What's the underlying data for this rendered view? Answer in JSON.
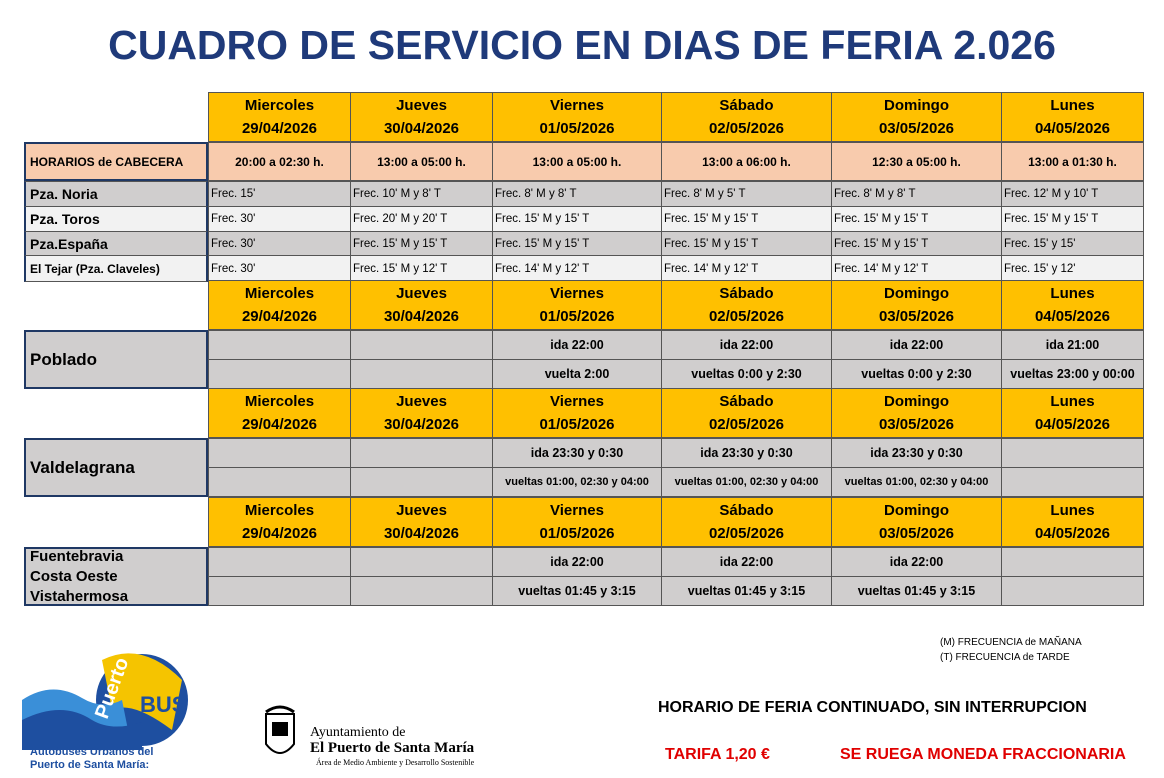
{
  "title": "CUADRO DE SERVICIO EN DIAS DE FERIA 2.026",
  "days": [
    {
      "name": "Miercoles",
      "date": "29/04/2026"
    },
    {
      "name": "Jueves",
      "date": "30/04/2026"
    },
    {
      "name": "Viernes",
      "date": "01/05/2026"
    },
    {
      "name": "Sábado",
      "date": "02/05/2026"
    },
    {
      "name": "Domingo",
      "date": "03/05/2026"
    },
    {
      "name": "Lunes",
      "date": "04/05/2026"
    }
  ],
  "main": {
    "label": "HORARIOS de CABECERA",
    "hours": [
      "20:00 a 02:30 h.",
      "13:00 a 05:00 h.",
      "13:00 a 05:00 h.",
      "13:00 a 06:00 h.",
      "12:30 a 05:00 h.",
      "13:00 a 01:30 h."
    ],
    "rows": [
      {
        "label": "Pza. Noria",
        "cells": [
          "Frec. 15'",
          "Frec. 10' M y 8' T",
          "Frec. 8' M y 8' T",
          "Frec. 8' M y 5' T",
          "Frec. 8' M y 8' T",
          "Frec. 12' M y 10' T"
        ]
      },
      {
        "label": "Pza. Toros",
        "cells": [
          "Frec. 30'",
          "Frec. 20' M y 20' T",
          "Frec. 15' M y 15' T",
          "Frec. 15' M y 15' T",
          "Frec. 15' M y 15' T",
          "Frec. 15' M y 15' T"
        ]
      },
      {
        "label": "Pza.España",
        "cells": [
          "Frec. 30'",
          "Frec. 15' M y 15' T",
          "Frec. 15' M y 15' T",
          "Frec. 15' M y 15' T",
          "Frec. 15' M y 15' T",
          "Frec. 15' y 15'"
        ]
      },
      {
        "label": "El Tejar (Pza. Claveles)",
        "cells": [
          "Frec. 30'",
          "Frec. 15' M y 12' T",
          "Frec. 14' M y 12' T",
          "Frec. 14' M y 12' T",
          "Frec. 14' M y 12' T",
          "Frec. 15' y 12'"
        ]
      }
    ]
  },
  "sections": [
    {
      "label": [
        "Poblado"
      ],
      "rows": [
        [
          null,
          null,
          "ida 22:00",
          "ida 22:00",
          "ida 22:00",
          "ida 21:00"
        ],
        [
          null,
          null,
          "vuelta 2:00",
          "vueltas 0:00 y 2:30",
          "vueltas 0:00 y 2:30",
          "vueltas 23:00 y 00:00"
        ]
      ]
    },
    {
      "label": [
        "Valdelagrana"
      ],
      "rows": [
        [
          null,
          null,
          "ida 23:30 y 0:30",
          "ida 23:30 y 0:30",
          "ida 23:30 y 0:30",
          null
        ],
        [
          null,
          null,
          "vueltas 01:00, 02:30 y 04:00",
          "vueltas 01:00, 02:30 y 04:00",
          "vueltas 01:00, 02:30 y 04:00",
          null
        ]
      ]
    },
    {
      "label": [
        "Fuentebravia",
        "Costa Oeste",
        "Vistahermosa"
      ],
      "rows": [
        [
          null,
          null,
          "ida 22:00",
          "ida 22:00",
          "ida 22:00",
          null
        ],
        [
          null,
          null,
          "vueltas 01:45 y 3:15",
          "vueltas 01:45 y 3:15",
          "vueltas 01:45 y 3:15",
          null
        ]
      ]
    }
  ],
  "legend": [
    "(M)  FRECUENCIA de MAÑANA",
    "(T)  FRECUENCIA de TARDE"
  ],
  "notice": "HORARIO DE FERIA CONTINUADO, SIN INTERRUPCION",
  "tarifa": "TARIFA 1,20 €",
  "moneda": "SE RUEGA MONEDA FRACCIONARIA",
  "logo": {
    "word1": "Puerto",
    "word2": "BUS",
    "line1": "Autobuses Urbanos del",
    "line2": "Puerto de Santa María:"
  },
  "ayuntamiento": {
    "line1": "Ayuntamiento de",
    "line2": "El Puerto de Santa María",
    "line3": "Área de Medio Ambiente y Desarrollo Sostenible"
  }
}
